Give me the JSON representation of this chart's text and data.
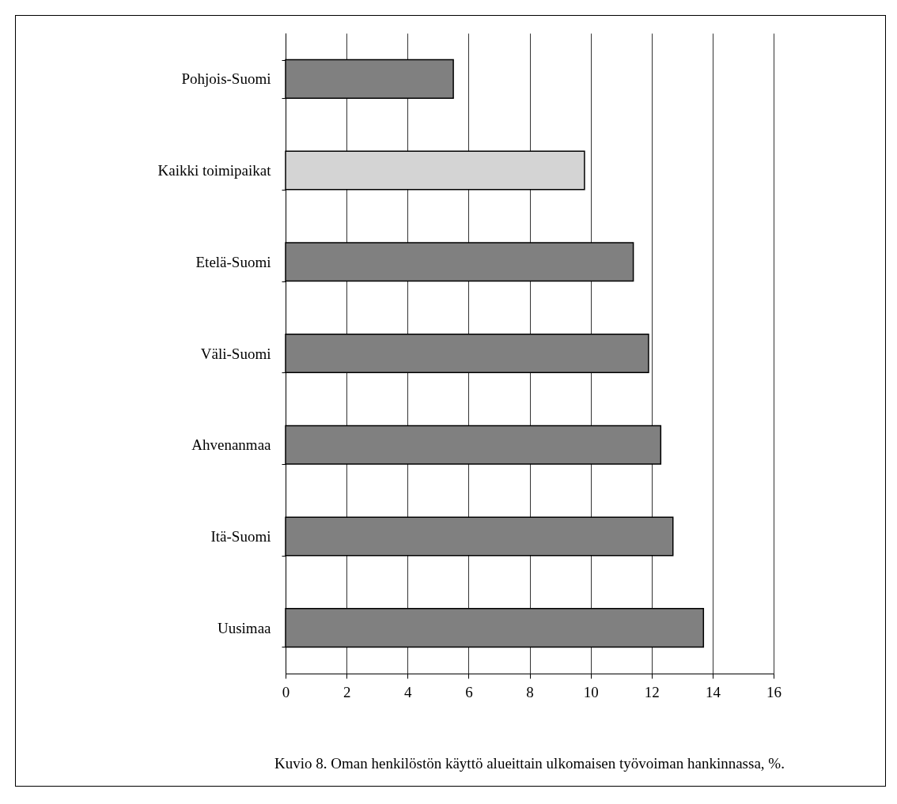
{
  "chart_data": {
    "type": "bar",
    "orientation": "horizontal",
    "categories": [
      "Pohjois-Suomi",
      "Kaikki toimipaikat",
      "Etelä-Suomi",
      "Väli-Suomi",
      "Ahvenanmaa",
      "Itä-Suomi",
      "Uusimaa"
    ],
    "values": [
      5.5,
      9.8,
      11.4,
      11.9,
      12.3,
      12.7,
      13.7
    ],
    "colors": [
      "#808080",
      "#d4d4d4",
      "#808080",
      "#808080",
      "#808080",
      "#808080",
      "#808080"
    ],
    "xlim": [
      0,
      16
    ],
    "xticks": [
      0,
      2,
      4,
      6,
      8,
      10,
      12,
      14,
      16
    ],
    "grid": "x",
    "annotations": [
      "Kuvio 8. Oman henkilöstön käyttö alueittain ulkomaisen työvoiman hankinnassa, %."
    ]
  }
}
